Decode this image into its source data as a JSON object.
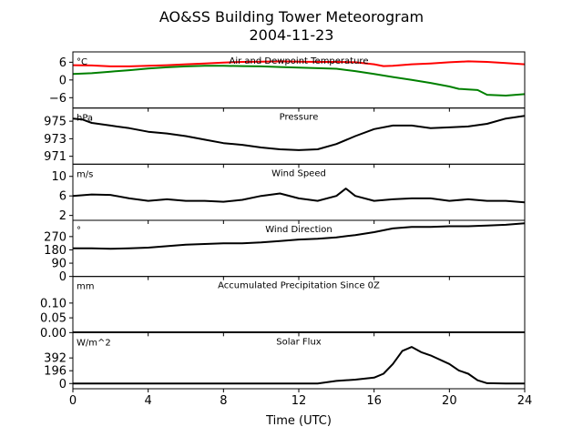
{
  "figure": {
    "title_line1": "AO&SS Building Tower Meteorogram",
    "title_line2": "2004-11-23",
    "xlabel": "Time (UTC)"
  },
  "chart_data": {
    "type": "line",
    "shared_x": {
      "label": "Time (UTC)",
      "xlim": [
        0,
        24
      ],
      "ticks": [
        0,
        4,
        8,
        12,
        16,
        20,
        24
      ],
      "tick_labels": [
        "0",
        "4",
        "8",
        "12",
        "16",
        "20",
        "24"
      ]
    },
    "panels": [
      {
        "title": "Air and Dewpoint Temperature",
        "unit": "°C",
        "ylim": [
          -9.5,
          9.5
        ],
        "yticks": [
          6,
          0,
          -6
        ],
        "ytick_labels": [
          "6",
          "0",
          "−6"
        ],
        "series": [
          {
            "color": "#ff0000",
            "x": [
              0,
              1,
              2,
              3,
              4,
              5,
              6,
              7,
              8,
              9,
              10,
              11,
              12,
              13,
              14,
              15,
              16,
              16.5,
              17,
              18,
              19,
              20,
              21,
              22,
              23,
              24
            ],
            "y": [
              5,
              4.9,
              4.6,
              4.6,
              4.8,
              5.0,
              5.3,
              5.6,
              5.9,
              6.1,
              6.2,
              6.3,
              6.2,
              6.1,
              6.1,
              6.0,
              5.3,
              4.7,
              4.8,
              5.3,
              5.6,
              6.0,
              6.3,
              6.1,
              5.7,
              5.3
            ]
          },
          {
            "color": "#008000",
            "x": [
              0,
              1,
              2,
              3,
              4,
              5,
              6,
              7,
              8,
              9,
              10,
              11,
              12,
              13,
              14,
              15,
              16,
              17,
              18,
              19,
              20,
              20.5,
              21,
              21.5,
              22,
              23,
              24
            ],
            "y": [
              2,
              2.3,
              2.8,
              3.3,
              3.9,
              4.3,
              4.6,
              4.8,
              4.8,
              4.7,
              4.6,
              4.4,
              4.2,
              4.0,
              3.8,
              3.0,
              2.0,
              1.0,
              0,
              -1.0,
              -2.2,
              -3.0,
              -3.2,
              -3.4,
              -5.0,
              -5.3,
              -4.8
            ]
          }
        ]
      },
      {
        "title": "Pressure",
        "unit": "hPa",
        "ylim": [
          970.1,
          976.5
        ],
        "yticks": [
          975,
          973,
          971
        ],
        "ytick_labels": [
          "975",
          "973",
          "971"
        ],
        "series": [
          {
            "color": "#000000",
            "x": [
              0,
              0.5,
              1,
              2,
              3,
              4,
              5,
              6,
              7,
              8,
              9,
              10,
              11,
              12,
              13,
              14,
              15,
              16,
              17,
              18,
              19,
              20,
              21,
              22,
              23,
              24
            ],
            "y": [
              975.3,
              975.2,
              974.8,
              974.5,
              974.2,
              973.8,
              973.6,
              973.3,
              972.9,
              972.5,
              972.3,
              972.0,
              971.8,
              971.7,
              971.8,
              972.4,
              973.3,
              974.1,
              974.5,
              974.5,
              974.2,
              974.3,
              974.4,
              974.7,
              975.3,
              975.6
            ]
          }
        ]
      },
      {
        "title": "Wind Speed",
        "unit": "m/s",
        "ylim": [
          1.0,
          12.5
        ],
        "yticks": [
          10,
          6,
          2
        ],
        "ytick_labels": [
          "10",
          "6",
          "2"
        ],
        "series": [
          {
            "color": "#000000",
            "x": [
              0,
              1,
              2,
              3,
              4,
              5,
              6,
              7,
              8,
              9,
              10,
              11,
              12,
              13,
              14,
              14.5,
              15,
              16,
              17,
              18,
              19,
              20,
              21,
              22,
              23,
              24
            ],
            "y": [
              6.0,
              6.3,
              6.2,
              5.5,
              5.0,
              5.3,
              5.0,
              5.0,
              4.8,
              5.2,
              6.0,
              6.5,
              5.5,
              5.0,
              6.0,
              7.5,
              6.0,
              5.0,
              5.3,
              5.5,
              5.5,
              5.0,
              5.3,
              5.0,
              5.0,
              4.7
            ]
          }
        ]
      },
      {
        "title": "Wind Direction",
        "unit": "°",
        "ylim": [
          0,
          380
        ],
        "yticks": [
          270,
          180,
          90,
          0
        ],
        "ytick_labels": [
          "270",
          "180",
          "90",
          "0"
        ],
        "series": [
          {
            "color": "#000000",
            "x": [
              0,
              1,
              2,
              3,
              4,
              5,
              6,
              7,
              8,
              9,
              10,
              11,
              12,
              13,
              14,
              15,
              16,
              17,
              18,
              19,
              20,
              21,
              22,
              23,
              24
            ],
            "y": [
              190,
              190,
              187,
              190,
              195,
              205,
              215,
              220,
              225,
              225,
              230,
              240,
              250,
              255,
              265,
              280,
              300,
              325,
              335,
              335,
              340,
              340,
              345,
              350,
              360
            ]
          }
        ]
      },
      {
        "title": "Accumulated Precipitation Since 0Z",
        "unit": "mm",
        "ylim": [
          0,
          0.19
        ],
        "yticks": [
          0.1,
          0.05,
          0.0
        ],
        "ytick_labels": [
          "0.10",
          "0.05",
          "0.00"
        ],
        "series": [
          {
            "color": "#000000",
            "x": [
              0,
              24
            ],
            "y": [
              0,
              0
            ]
          }
        ]
      },
      {
        "title": "Solar Flux",
        "unit": "W/m^2",
        "ylim": [
          -80,
          780
        ],
        "yticks": [
          392,
          196,
          0
        ],
        "ytick_labels": [
          "392",
          "196",
          "0"
        ],
        "series": [
          {
            "color": "#000000",
            "x": [
              0,
              2,
              4,
              6,
              8,
              10,
              12,
              13,
              14,
              15,
              16,
              16.5,
              17,
              17.5,
              18,
              18.5,
              19,
              20,
              20.5,
              21,
              21.5,
              22,
              23,
              24
            ],
            "y": [
              0,
              0,
              0,
              0,
              0,
              0,
              0,
              0,
              40,
              60,
              90,
              150,
              300,
              500,
              560,
              480,
              430,
              300,
              200,
              150,
              50,
              5,
              0,
              0
            ]
          }
        ]
      }
    ]
  }
}
